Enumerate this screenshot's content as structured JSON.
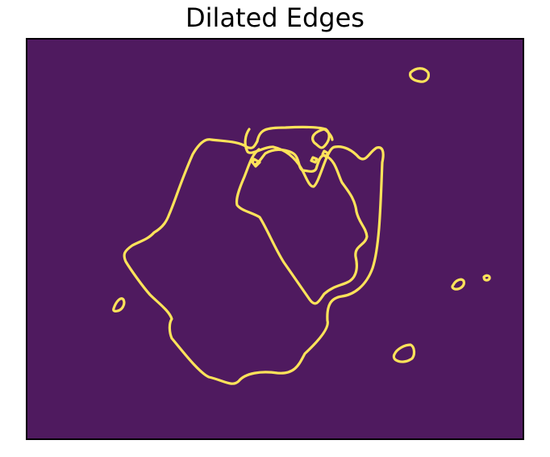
{
  "figure": {
    "title": "Dilated Edges"
  },
  "image": {
    "background_color": "#4f1a5f",
    "edge_color": "#fde35a"
  }
}
